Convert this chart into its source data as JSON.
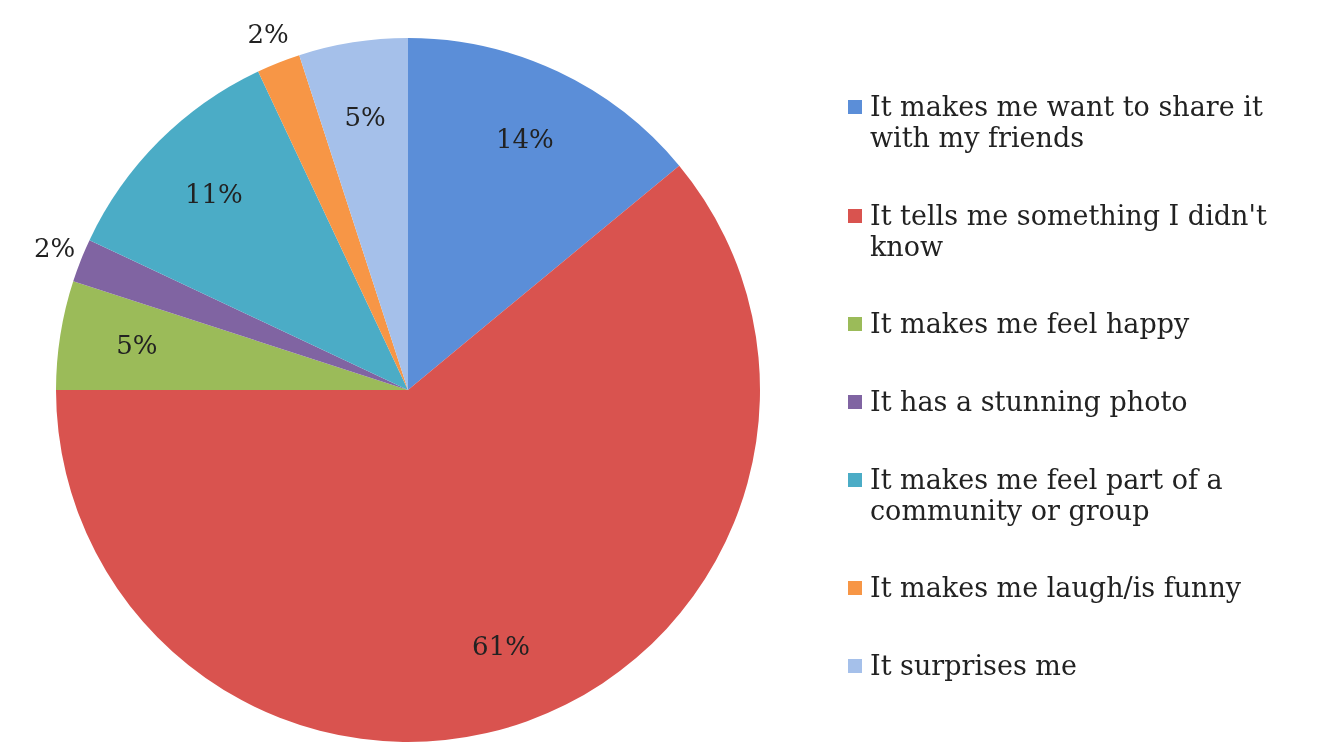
{
  "chart_data": {
    "type": "pie",
    "categories": [
      "It makes me want to share it with my friends",
      "It tells me something I didn't know",
      "It makes me feel happy",
      "It has a stunning photo",
      "It makes me feel part of a community or group",
      "It makes me laugh/is funny",
      "It surprises me"
    ],
    "values": [
      14,
      61,
      5,
      2,
      11,
      2,
      5
    ],
    "colors": [
      "#5b8ed8",
      "#d9534f",
      "#9bbb59",
      "#8064a2",
      "#4bacc6",
      "#f79646",
      "#a5c0ea"
    ],
    "value_labels": [
      "14%",
      "61%",
      "5%",
      "2%",
      "11%",
      "2%",
      "5%"
    ],
    "legend": "right"
  }
}
